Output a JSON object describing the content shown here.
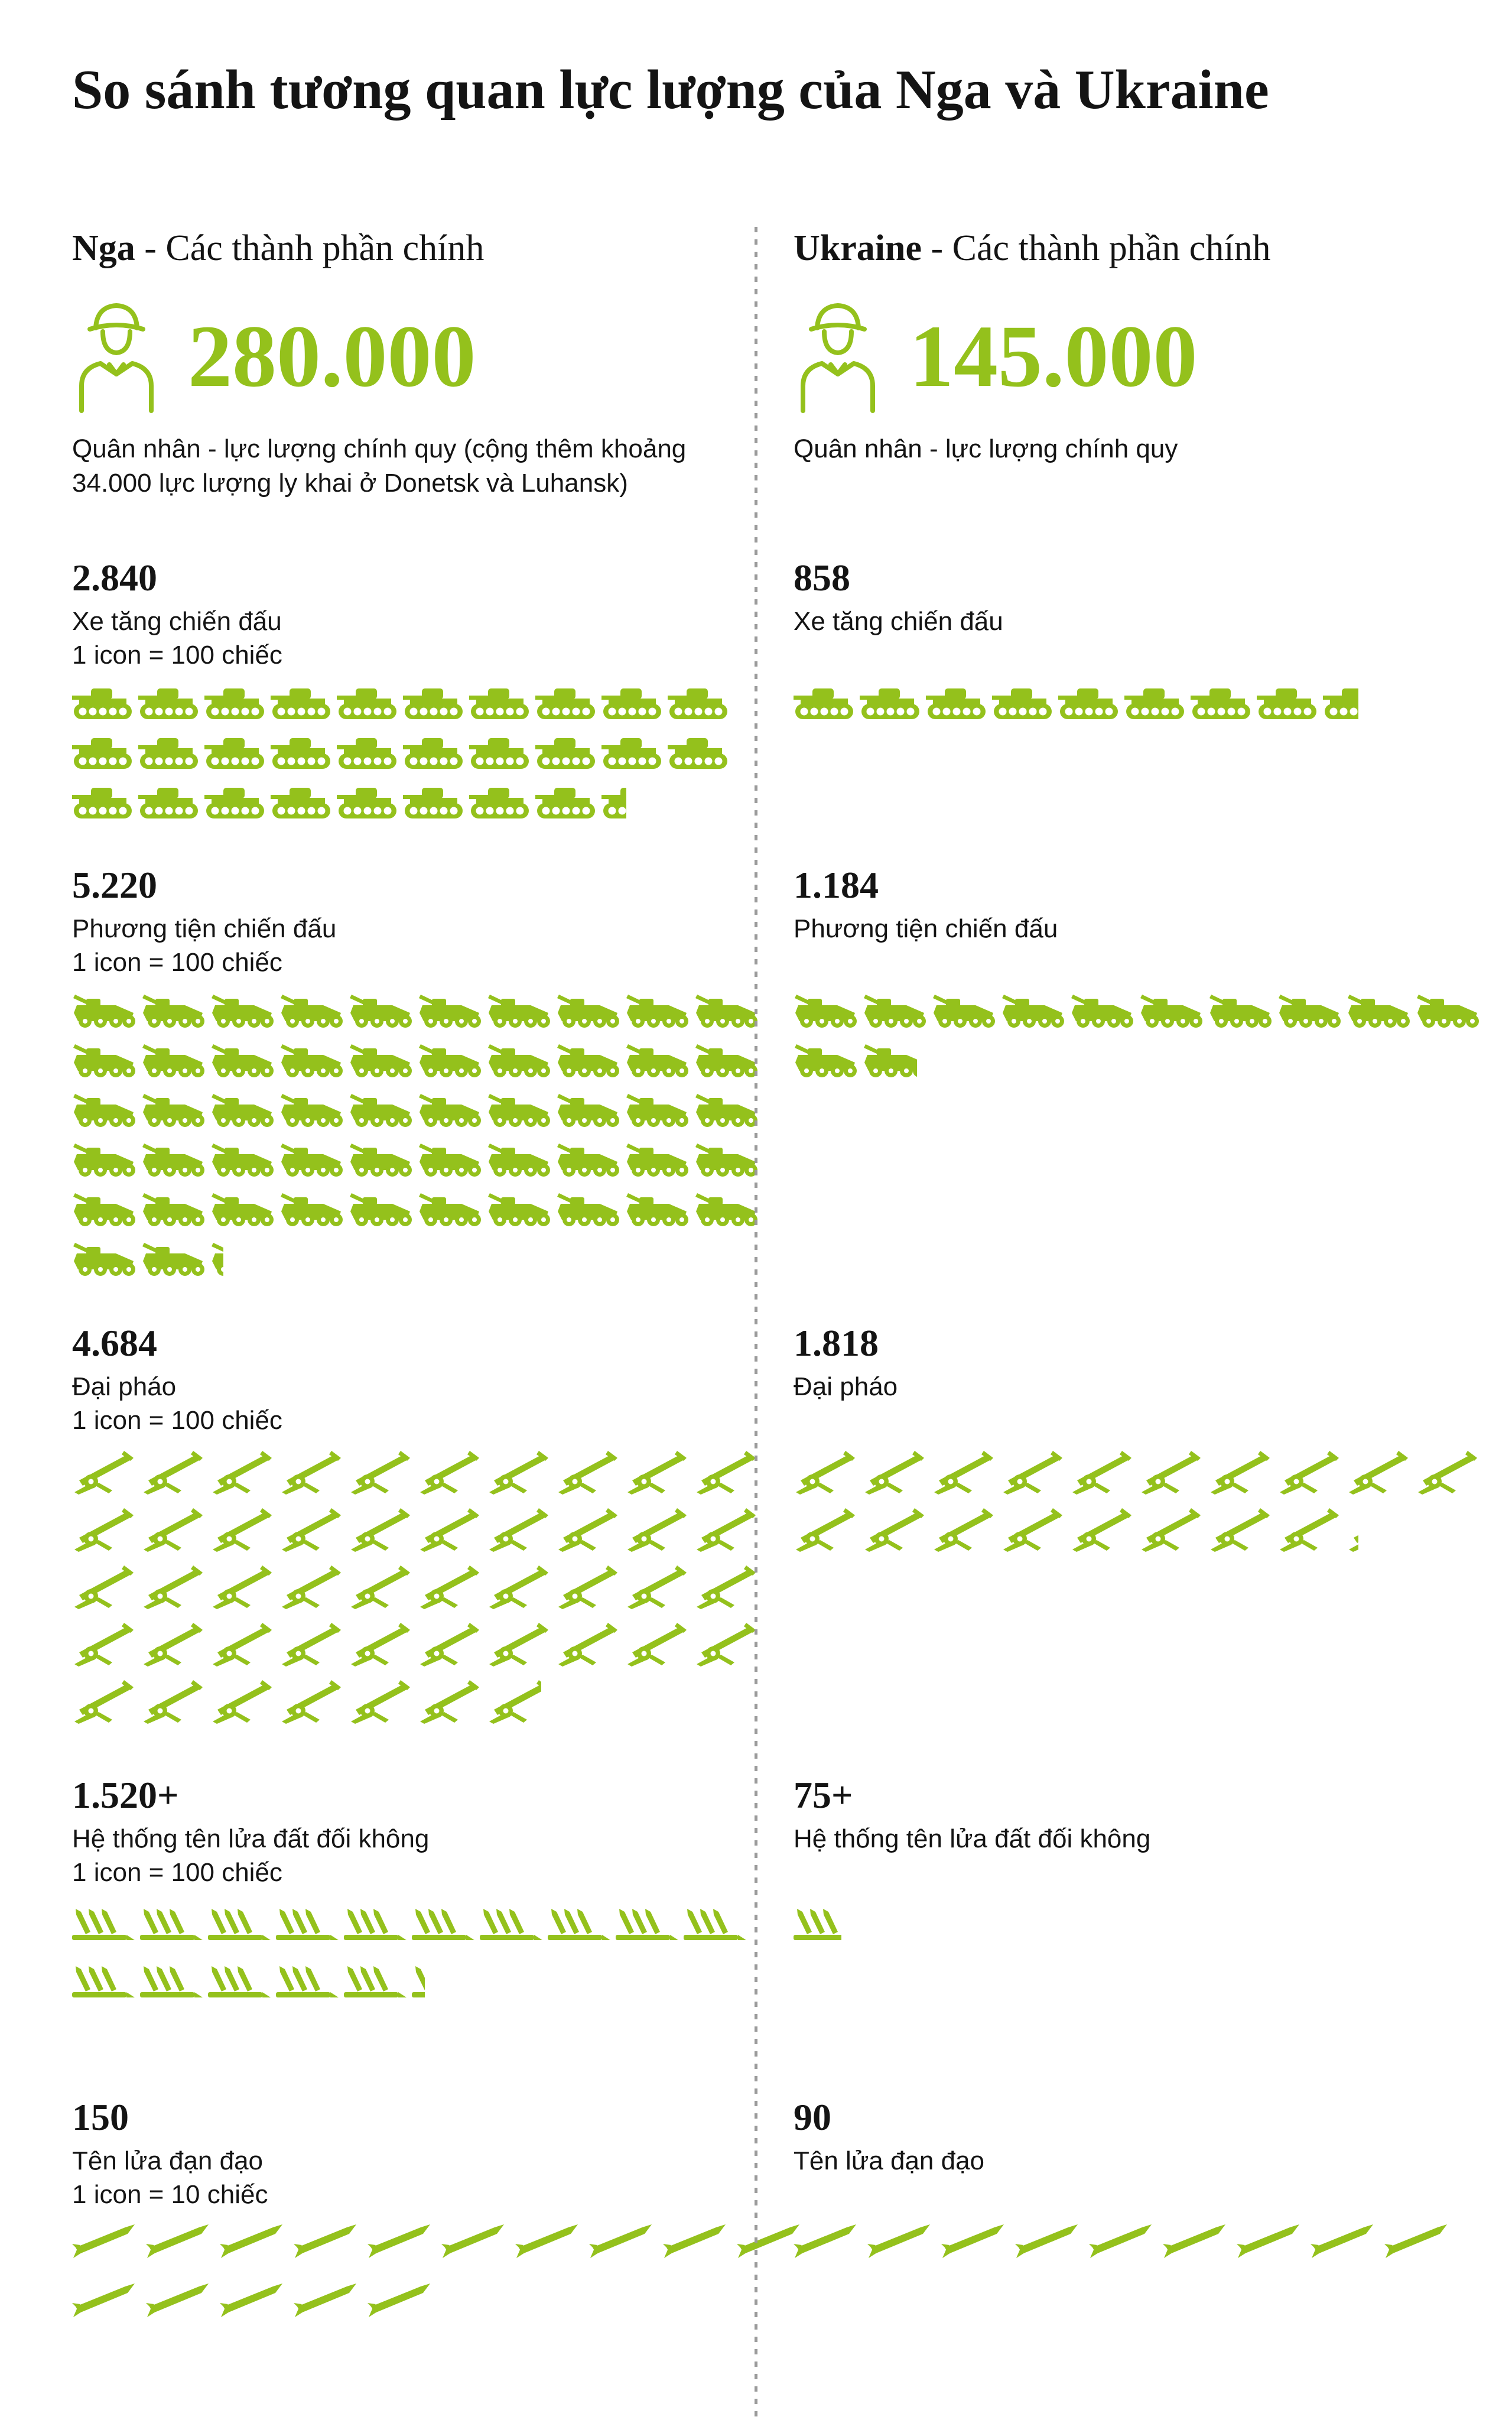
{
  "meta": {
    "accent": "#94c11c",
    "divider_color": "#9a9a9a",
    "text_color": "#141414"
  },
  "title": "So sánh tương quan lực lượng của Nga và Ukraine",
  "columns": [
    {
      "id": "nga",
      "header": {
        "bold": "Nga",
        "rest": " - Các thành phần chính"
      },
      "personnel": {
        "value": "280.000",
        "caption": "Quân nhân - lực lượng chính quy (cộng thêm khoảng 34.000 lực lượng ly khai ở Donetsk và Luhansk)"
      },
      "sections": [
        {
          "display": "2.840",
          "label": "Xe tăng chiến đấu",
          "scale_note": "1 icon = 100 chiếc",
          "icon": "tank",
          "value": 2840,
          "per_icon": 100,
          "per_row": 10
        },
        {
          "display": "5.220",
          "label": "Phương tiện chiến đấu",
          "scale_note": "1 icon = 100 chiếc",
          "icon": "vehicle",
          "value": 5220,
          "per_icon": 100,
          "per_row": 10
        },
        {
          "display": "4.684",
          "label": "Đại pháo",
          "scale_note": "1 icon = 100 chiếc",
          "icon": "artillery",
          "value": 4684,
          "per_icon": 100,
          "per_row": 10
        },
        {
          "display": "1.520+",
          "label": "Hệ thống tên lửa đất đối không",
          "scale_note": "1 icon = 100 chiếc",
          "icon": "sam",
          "value": 1520,
          "per_icon": 100,
          "per_row": 10
        },
        {
          "display": "150",
          "label": "Tên lửa đạn đạo",
          "scale_note": "1 icon = 10 chiếc",
          "icon": "missile",
          "value": 150,
          "per_icon": 10,
          "per_row": 10
        }
      ]
    },
    {
      "id": "ukraine",
      "header": {
        "bold": "Ukraine",
        "rest": " - Các thành phần chính"
      },
      "personnel": {
        "value": "145.000",
        "caption": "Quân nhân - lực lượng chính quy"
      },
      "sections": [
        {
          "display": "858",
          "label": "Xe tăng chiến đấu",
          "scale_note": "",
          "icon": "tank",
          "value": 858,
          "per_icon": 100,
          "per_row": 10
        },
        {
          "display": "1.184",
          "label": "Phương tiện chiến đấu",
          "scale_note": "",
          "icon": "vehicle",
          "value": 1184,
          "per_icon": 100,
          "per_row": 10
        },
        {
          "display": "1.818",
          "label": "Đại pháo",
          "scale_note": "",
          "icon": "artillery",
          "value": 1818,
          "per_icon": 100,
          "per_row": 10
        },
        {
          "display": "75+",
          "label": "Hệ thống tên lửa đất đối không",
          "scale_note": "",
          "icon": "sam",
          "value": 75,
          "per_icon": 100,
          "per_row": 10
        },
        {
          "display": "90",
          "label": "Tên lửa đạn đạo",
          "scale_note": "",
          "icon": "missile",
          "value": 90,
          "per_icon": 10,
          "per_row": 10
        }
      ]
    }
  ],
  "chart_data": {
    "type": "pictogram",
    "title": "So sánh tương quan lực lượng của Nga và Ukraine",
    "categories": [
      "Quân nhân - lực lượng chính quy",
      "Xe tăng chiến đấu",
      "Phương tiện chiến đấu",
      "Đại pháo",
      "Hệ thống tên lửa đất đối không",
      "Tên lửa đạn đạo"
    ],
    "series": [
      {
        "name": "Nga",
        "values": [
          280000,
          2840,
          5220,
          4684,
          1520,
          150
        ],
        "value_labels": [
          "280.000",
          "2.840",
          "5.220",
          "4.684",
          "1.520+",
          "150"
        ]
      },
      {
        "name": "Ukraine",
        "values": [
          145000,
          858,
          1184,
          1818,
          75,
          90
        ],
        "value_labels": [
          "145.000",
          "858",
          "1.184",
          "1.818",
          "75+",
          "90"
        ]
      }
    ],
    "notes": [
      "Nga: cộng thêm khoảng 34.000 lực lượng ly khai ở Donetsk và Luhansk",
      "1 icon = 100 chiếc; tên lửa đạn đạo: 1 icon = 10 chiếc"
    ],
    "legend_position": "none",
    "grid": false
  }
}
